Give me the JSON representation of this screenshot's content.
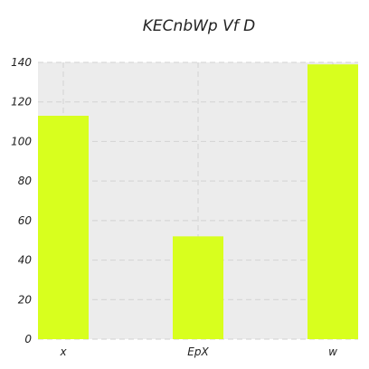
{
  "chart_data": {
    "type": "bar",
    "title": "KECnbWp Vf  D",
    "xlabel": "",
    "ylabel": "",
    "categories": [
      "x",
      "EpX",
      "w"
    ],
    "values": [
      113,
      52,
      139
    ],
    "ylim": [
      0,
      140
    ],
    "yticks": [
      "0",
      "20",
      "40",
      "60",
      "80",
      "100",
      "120",
      "140"
    ],
    "grid": true,
    "colors": {
      "bar": "#d8ff1e",
      "plot_background": "#ececec",
      "grid": "#d2d2d2"
    }
  }
}
